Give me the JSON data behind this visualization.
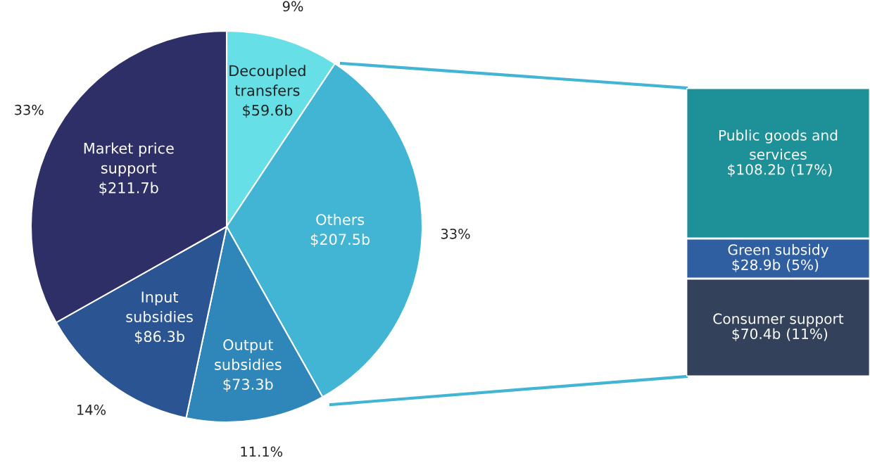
{
  "chart_data": [
    {
      "type": "pie",
      "categories": [
        "Decoupled\ntransfers",
        "Others",
        "Output\nsubsidies",
        "Input\nsubsidies",
        "Market price\nsupport"
      ],
      "values": [
        59.6,
        207.5,
        73.3,
        86.3,
        211.7
      ],
      "colors": [
        "#66e0e6",
        "#42b5d5",
        "#2f86b8",
        "#2b5592",
        "#2e2f66"
      ],
      "value_labels": [
        "$59.6b",
        "$207.5b",
        "$73.3b",
        "$86.3b",
        "$211.7b"
      ],
      "annotations": [
        {
          "text": "9%",
          "x": "Decoupled\ntransfers"
        },
        {
          "text": "33%",
          "x": "Others"
        },
        {
          "text": "11.1%",
          "x": "Output\nsubsidies"
        },
        {
          "text": "14%",
          "x": "Input\nsubsidies"
        },
        {
          "text": "33%",
          "x": "Market price\nsupport"
        }
      ],
      "legend": false
    },
    {
      "type": "bar",
      "stacked": true,
      "categories": [
        null
      ],
      "legend": false,
      "annotations": [
        "(11%)",
        "(5%)",
        "(17%)"
      ],
      "series": [
        {
          "name": "Consumer support",
          "color": "#33415a",
          "values": [
            70.4
          ],
          "value_labels": [
            "$70.4b"
          ]
        },
        {
          "name": "Green subsidy",
          "color": "#2f5fa0",
          "values": [
            28.9
          ],
          "value_labels": [
            "$28.9b"
          ]
        },
        {
          "name": "Public goods and\nservices",
          "color": "#1e9097",
          "values": [
            108.2
          ],
          "value_labels": [
            "$108.2b"
          ]
        }
      ]
    }
  ]
}
